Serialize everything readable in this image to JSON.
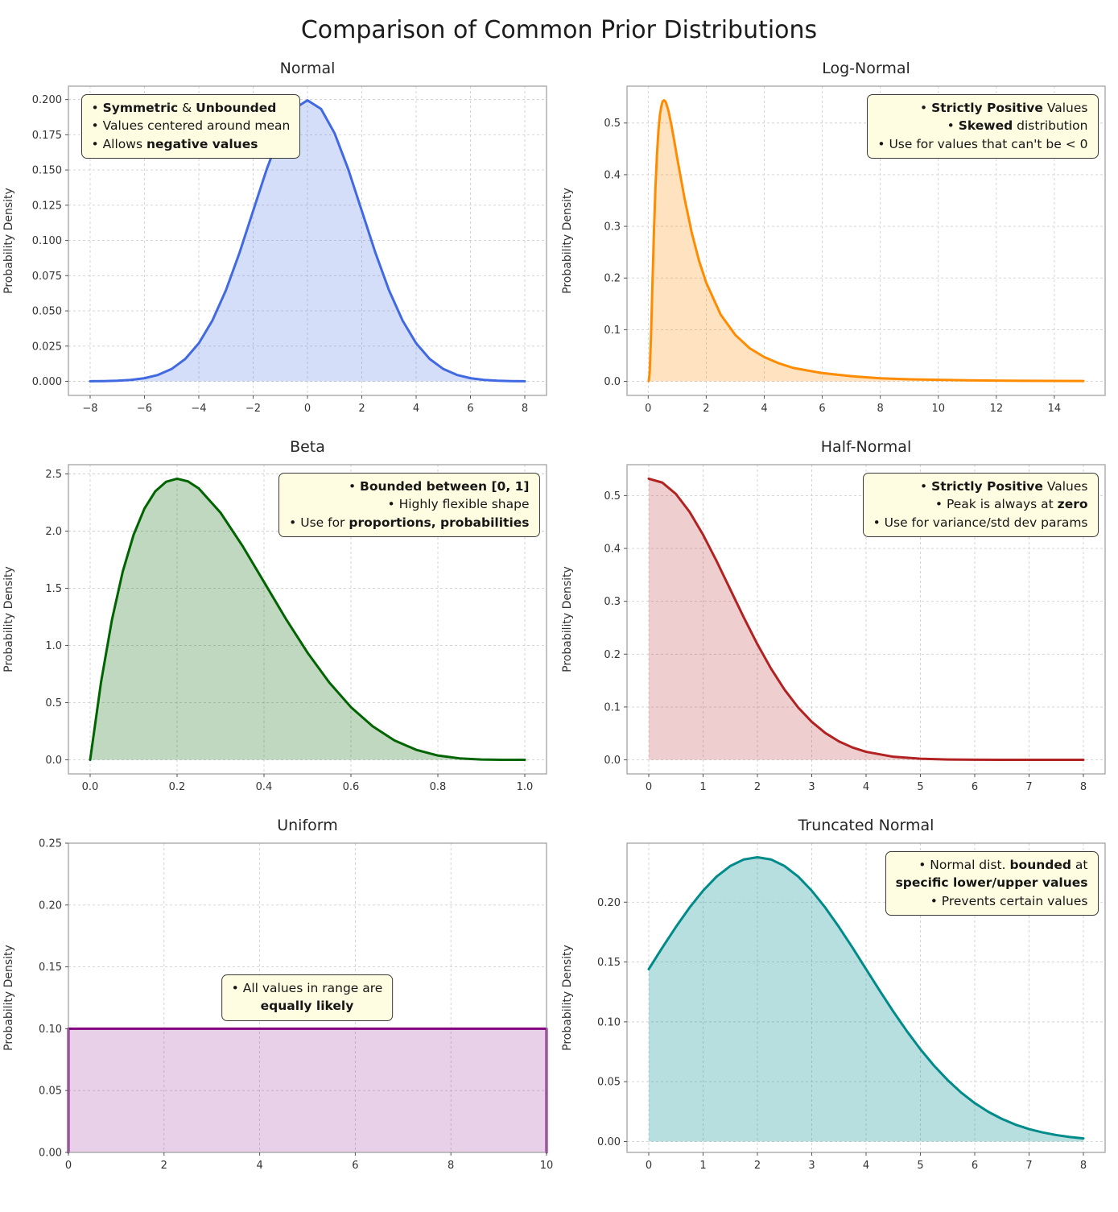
{
  "page": {
    "title": "Comparison of Common Prior Distributions"
  },
  "colors": {
    "grid": "#d0d0d0",
    "spine": "#9b9b9b",
    "tick_text": "#333333",
    "title_text": "#262626",
    "annotation_bg": "#fffde1",
    "annotation_border": "#3a3a3a"
  },
  "chart_data": [
    {
      "id": "normal",
      "type": "area",
      "title": "Normal",
      "ylabel": "Probability Density",
      "line_color": "#4169e1",
      "fill_opacity": 0.22,
      "xlim": [
        -8.8,
        8.8
      ],
      "ylim": [
        -0.01,
        0.2095
      ],
      "xticks": {
        "values": [
          -8,
          -6,
          -4,
          -2,
          0,
          2,
          4,
          6,
          8
        ],
        "labels": [
          "−8",
          "−6",
          "−4",
          "−2",
          "0",
          "2",
          "4",
          "6",
          "8"
        ]
      },
      "yticks": {
        "values": [
          0,
          0.025,
          0.05,
          0.075,
          0.1,
          0.125,
          0.15,
          0.175,
          0.2
        ],
        "labels": [
          "0.000",
          "0.025",
          "0.050",
          "0.075",
          "0.100",
          "0.125",
          "0.150",
          "0.175",
          "0.200"
        ]
      },
      "points": [
        [
          -8,
          7e-05
        ],
        [
          -7.5,
          0.00018
        ],
        [
          -7,
          0.00044
        ],
        [
          -6.5,
          0.00102
        ],
        [
          -6,
          0.00222
        ],
        [
          -5.5,
          0.00455
        ],
        [
          -5,
          0.00876
        ],
        [
          -4.5,
          0.01586
        ],
        [
          -4,
          0.027
        ],
        [
          -3.5,
          0.04314
        ],
        [
          -3,
          0.06476
        ],
        [
          -2.5,
          0.09132
        ],
        [
          -2,
          0.12099
        ],
        [
          -1.5,
          0.15057
        ],
        [
          -1,
          0.17603
        ],
        [
          -0.5,
          0.19333
        ],
        [
          0,
          0.19947
        ],
        [
          0.5,
          0.19333
        ],
        [
          1,
          0.17603
        ],
        [
          1.5,
          0.15057
        ],
        [
          2,
          0.12099
        ],
        [
          2.5,
          0.09132
        ],
        [
          3,
          0.06476
        ],
        [
          3.5,
          0.04314
        ],
        [
          4,
          0.027
        ],
        [
          4.5,
          0.01586
        ],
        [
          5,
          0.00876
        ],
        [
          5.5,
          0.00455
        ],
        [
          6,
          0.00222
        ],
        [
          6.5,
          0.00102
        ],
        [
          7,
          0.00044
        ],
        [
          7.5,
          0.00018
        ],
        [
          8,
          7e-05
        ]
      ],
      "annotation": {
        "position": "top-left",
        "align": "left",
        "lines": [
          [
            {
              "t": "• ",
              "b": false
            },
            {
              "t": "Symmetric",
              "b": true
            },
            {
              "t": " & ",
              "b": false
            },
            {
              "t": "Unbounded",
              "b": true
            }
          ],
          [
            {
              "t": "• Values centered around mean",
              "b": false
            }
          ],
          [
            {
              "t": "• Allows ",
              "b": false
            },
            {
              "t": "negative values",
              "b": true
            }
          ]
        ]
      }
    },
    {
      "id": "log-normal",
      "type": "area",
      "title": "Log-Normal",
      "ylabel": "Probability Density",
      "line_color": "#ff8c00",
      "fill_opacity": 0.25,
      "xlim": [
        -0.73,
        15.75
      ],
      "ylim": [
        -0.0272,
        0.5713
      ],
      "xticks": {
        "values": [
          0,
          2,
          4,
          6,
          8,
          10,
          12,
          14
        ],
        "labels": [
          "0",
          "2",
          "4",
          "6",
          "8",
          "10",
          "12",
          "14"
        ]
      },
      "yticks": {
        "values": [
          0,
          0.1,
          0.2,
          0.3,
          0.4,
          0.5
        ],
        "labels": [
          "0.0",
          "0.1",
          "0.2",
          "0.3",
          "0.4",
          "0.5"
        ]
      },
      "points": [
        [
          0.02,
          0.0007
        ],
        [
          0.05,
          0.016
        ],
        [
          0.1,
          0.093
        ],
        [
          0.15,
          0.196
        ],
        [
          0.2,
          0.294
        ],
        [
          0.25,
          0.375
        ],
        [
          0.3,
          0.437
        ],
        [
          0.35,
          0.483
        ],
        [
          0.4,
          0.514
        ],
        [
          0.45,
          0.532
        ],
        [
          0.5,
          0.542
        ],
        [
          0.55,
          0.544
        ],
        [
          0.6,
          0.541
        ],
        [
          0.65,
          0.533
        ],
        [
          0.7,
          0.523
        ],
        [
          0.8,
          0.496
        ],
        [
          0.9,
          0.465
        ],
        [
          1,
          0.432
        ],
        [
          1.25,
          0.355
        ],
        [
          1.5,
          0.288
        ],
        [
          1.75,
          0.234
        ],
        [
          2,
          0.191
        ],
        [
          2.5,
          0.129
        ],
        [
          3,
          0.09
        ],
        [
          3.5,
          0.064
        ],
        [
          4,
          0.047
        ],
        [
          4.5,
          0.035
        ],
        [
          5,
          0.026
        ],
        [
          6,
          0.016
        ],
        [
          7,
          0.01
        ],
        [
          8,
          0.006
        ],
        [
          9,
          0.004
        ],
        [
          10,
          0.003
        ],
        [
          11,
          0.002
        ],
        [
          12,
          0.0015
        ],
        [
          13,
          0.0011
        ],
        [
          14,
          0.0008
        ],
        [
          15,
          0.0006
        ]
      ],
      "annotation": {
        "position": "top-right",
        "align": "right",
        "lines": [
          [
            {
              "t": "• ",
              "b": false
            },
            {
              "t": "Strictly Positive",
              "b": true
            },
            {
              "t": " Values",
              "b": false
            }
          ],
          [
            {
              "t": "• ",
              "b": false
            },
            {
              "t": "Skewed",
              "b": true
            },
            {
              "t": " distribution",
              "b": false
            }
          ],
          [
            {
              "t": "• Use for values that can't be < 0",
              "b": false
            }
          ]
        ]
      }
    },
    {
      "id": "beta",
      "type": "area",
      "title": "Beta",
      "ylabel": "Probability Density",
      "line_color": "#006400",
      "fill_opacity": 0.25,
      "xlim": [
        -0.05,
        1.05
      ],
      "ylim": [
        -0.123,
        2.581
      ],
      "xticks": {
        "values": [
          0,
          0.2,
          0.4,
          0.6,
          0.8,
          1.0
        ],
        "labels": [
          "0.0",
          "0.2",
          "0.4",
          "0.6",
          "0.8",
          "1.0"
        ]
      },
      "yticks": {
        "values": [
          0,
          0.5,
          1.0,
          1.5,
          2.0,
          2.5
        ],
        "labels": [
          "0.0",
          "0.5",
          "1.0",
          "1.5",
          "2.0",
          "2.5"
        ]
      },
      "points": [
        [
          0,
          0
        ],
        [
          0.025,
          0.678
        ],
        [
          0.05,
          1.222
        ],
        [
          0.075,
          1.647
        ],
        [
          0.1,
          1.968
        ],
        [
          0.125,
          2.198
        ],
        [
          0.15,
          2.349
        ],
        [
          0.175,
          2.432
        ],
        [
          0.2,
          2.458
        ],
        [
          0.225,
          2.435
        ],
        [
          0.25,
          2.373
        ],
        [
          0.3,
          2.161
        ],
        [
          0.35,
          1.874
        ],
        [
          0.4,
          1.555
        ],
        [
          0.45,
          1.235
        ],
        [
          0.5,
          0.938
        ],
        [
          0.55,
          0.677
        ],
        [
          0.6,
          0.461
        ],
        [
          0.65,
          0.293
        ],
        [
          0.7,
          0.17
        ],
        [
          0.75,
          0.088
        ],
        [
          0.8,
          0.038
        ],
        [
          0.85,
          0.013
        ],
        [
          0.9,
          0.003
        ],
        [
          0.95,
          0.0002
        ],
        [
          1,
          0
        ]
      ],
      "annotation": {
        "position": "top-right",
        "align": "right",
        "lines": [
          [
            {
              "t": "• ",
              "b": false
            },
            {
              "t": "Bounded between [0, 1]",
              "b": true
            }
          ],
          [
            {
              "t": "• Highly flexible shape",
              "b": false
            }
          ],
          [
            {
              "t": "• Use for ",
              "b": false
            },
            {
              "t": "proportions, probabilities",
              "b": true
            }
          ]
        ]
      }
    },
    {
      "id": "half-normal",
      "type": "area",
      "title": "Half-Normal",
      "ylabel": "Probability Density",
      "line_color": "#b22222",
      "fill_opacity": 0.22,
      "xlim": [
        -0.4,
        8.4
      ],
      "ylim": [
        -0.0266,
        0.5585
      ],
      "xticks": {
        "values": [
          0,
          1,
          2,
          3,
          4,
          5,
          6,
          7,
          8
        ],
        "labels": [
          "0",
          "1",
          "2",
          "3",
          "4",
          "5",
          "6",
          "7",
          "8"
        ]
      },
      "yticks": {
        "values": [
          0,
          0.1,
          0.2,
          0.3,
          0.4,
          0.5
        ],
        "labels": [
          "0.0",
          "0.1",
          "0.2",
          "0.3",
          "0.4",
          "0.5"
        ]
      },
      "points": [
        [
          0,
          0.5319
        ],
        [
          0.25,
          0.5246
        ],
        [
          0.5,
          0.5031
        ],
        [
          0.75,
          0.4694
        ],
        [
          1,
          0.4259
        ],
        [
          1.25,
          0.3759
        ],
        [
          1.5,
          0.3226
        ],
        [
          1.75,
          0.2693
        ],
        [
          2,
          0.2187
        ],
        [
          2.25,
          0.1727
        ],
        [
          2.5,
          0.1327
        ],
        [
          2.75,
          0.0991
        ],
        [
          3,
          0.072
        ],
        [
          3.25,
          0.0508
        ],
        [
          3.5,
          0.0349
        ],
        [
          3.75,
          0.0234
        ],
        [
          4,
          0.0152
        ],
        [
          4.5,
          0.0059
        ],
        [
          5,
          0.0021
        ],
        [
          5.5,
          0.0006
        ],
        [
          6,
          0.0002
        ],
        [
          6.5,
          0.0001
        ],
        [
          7,
          3e-05
        ],
        [
          7.5,
          1e-05
        ],
        [
          8,
          0
        ]
      ],
      "annotation": {
        "position": "top-right",
        "align": "right",
        "lines": [
          [
            {
              "t": "• ",
              "b": false
            },
            {
              "t": "Strictly Positive",
              "b": true
            },
            {
              "t": " Values",
              "b": false
            }
          ],
          [
            {
              "t": "• Peak is always at ",
              "b": false
            },
            {
              "t": "zero",
              "b": true
            }
          ],
          [
            {
              "t": "• Use for variance/std dev params",
              "b": false
            }
          ]
        ]
      }
    },
    {
      "id": "uniform",
      "type": "area",
      "title": "Uniform",
      "ylabel": "Probability Density",
      "line_color": "#800080",
      "fill_opacity": 0.18,
      "xlim": [
        0,
        10
      ],
      "ylim": [
        0,
        0.25
      ],
      "xticks": {
        "values": [
          0,
          2,
          4,
          6,
          8,
          10
        ],
        "labels": [
          "0",
          "2",
          "4",
          "6",
          "8",
          "10"
        ]
      },
      "yticks": {
        "values": [
          0,
          0.05,
          0.1,
          0.15,
          0.2,
          0.25
        ],
        "labels": [
          "0.00",
          "0.05",
          "0.10",
          "0.15",
          "0.20",
          "0.25"
        ]
      },
      "points": [
        [
          0,
          0
        ],
        [
          0,
          0.1
        ],
        [
          10,
          0.1
        ],
        [
          10,
          0
        ]
      ],
      "annotation": {
        "position": "center",
        "align": "center",
        "lines": [
          [
            {
              "t": "• All values in range are",
              "b": false
            }
          ],
          [
            {
              "t": "equally likely",
              "b": true
            }
          ]
        ]
      }
    },
    {
      "id": "truncated-normal",
      "type": "area",
      "title": "Truncated Normal",
      "ylabel": "Probability Density",
      "line_color": "#008b8b",
      "fill_opacity": 0.28,
      "xlim": [
        -0.4,
        8.4
      ],
      "ylim": [
        -0.0091,
        0.2493
      ],
      "xticks": {
        "values": [
          0,
          1,
          2,
          3,
          4,
          5,
          6,
          7,
          8
        ],
        "labels": [
          "0",
          "1",
          "2",
          "3",
          "4",
          "5",
          "6",
          "7",
          "8"
        ]
      },
      "yticks": {
        "values": [
          0,
          0.05,
          0.1,
          0.15,
          0.2
        ],
        "labels": [
          "0.00",
          "0.05",
          "0.10",
          "0.15",
          "0.20"
        ]
      },
      "points": [
        [
          0,
          0.144
        ],
        [
          0.25,
          0.162
        ],
        [
          0.5,
          0.1793
        ],
        [
          0.75,
          0.1954
        ],
        [
          1,
          0.2096
        ],
        [
          1.25,
          0.2214
        ],
        [
          1.5,
          0.2302
        ],
        [
          1.75,
          0.2357
        ],
        [
          2,
          0.2375
        ],
        [
          2.25,
          0.2357
        ],
        [
          2.5,
          0.2302
        ],
        [
          2.75,
          0.2214
        ],
        [
          3,
          0.2096
        ],
        [
          3.25,
          0.1954
        ],
        [
          3.5,
          0.1793
        ],
        [
          3.75,
          0.162
        ],
        [
          4,
          0.144
        ],
        [
          4.25,
          0.1261
        ],
        [
          4.5,
          0.1087
        ],
        [
          4.75,
          0.0923
        ],
        [
          5,
          0.0771
        ],
        [
          5.25,
          0.0634
        ],
        [
          5.5,
          0.0514
        ],
        [
          5.75,
          0.0409
        ],
        [
          6,
          0.0321
        ],
        [
          6.25,
          0.0248
        ],
        [
          6.5,
          0.0189
        ],
        [
          6.75,
          0.0141
        ],
        [
          7,
          0.0104
        ],
        [
          7.25,
          0.0076
        ],
        [
          7.5,
          0.0054
        ],
        [
          7.75,
          0.0038
        ],
        [
          8,
          0.0026
        ]
      ],
      "annotation": {
        "position": "top-right",
        "align": "right",
        "lines": [
          [
            {
              "t": "• Normal dist. ",
              "b": false
            },
            {
              "t": "bounded",
              "b": true
            },
            {
              "t": " at",
              "b": false
            }
          ],
          [
            {
              "t": "specific lower/upper values",
              "b": true
            }
          ],
          [
            {
              "t": "• Prevents certain values",
              "b": false
            }
          ]
        ]
      }
    }
  ]
}
